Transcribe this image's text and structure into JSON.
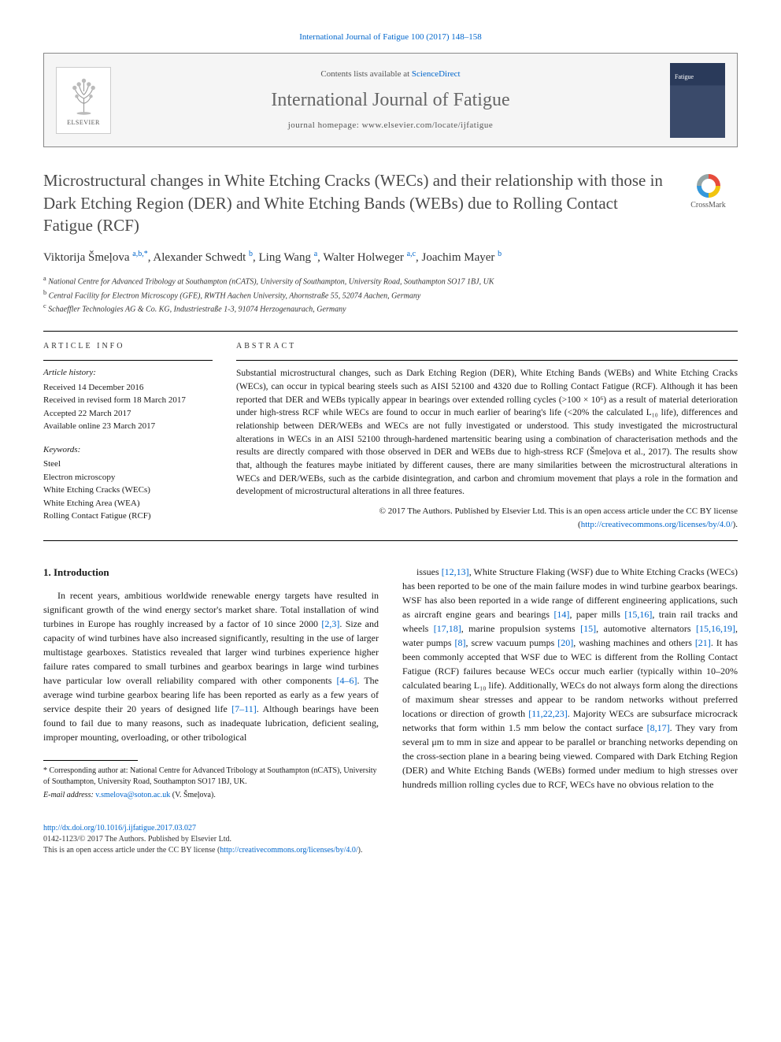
{
  "citation": "International Journal of Fatigue 100 (2017) 148–158",
  "header": {
    "publisher_logo_label": "ELSEVIER",
    "contents_prefix": "Contents lists available at ",
    "contents_source": "ScienceDirect",
    "journal_name": "International Journal of Fatigue",
    "homepage_prefix": "journal homepage: ",
    "homepage_url": "www.elsevier.com/locate/ijfatigue",
    "cover_label": "Fatigue"
  },
  "title": "Microstructural changes in White Etching Cracks (WECs) and their relationship with those in Dark Etching Region (DER) and White Etching Bands (WEBs) due to Rolling Contact Fatigue (RCF)",
  "crossmark_label": "CrossMark",
  "authors_html": "Viktorija Šmeļova <sup>a,b,*</sup>, Alexander Schwedt <sup>b</sup>, Ling Wang <sup>a</sup>, Walter Holweger <sup>a,c</sup>, Joachim Mayer <sup>b</sup>",
  "affiliations": [
    {
      "sup": "a",
      "text": "National Centre for Advanced Tribology at Southampton (nCATS), University of Southampton, University Road, Southampton SO17 1BJ, UK"
    },
    {
      "sup": "b",
      "text": "Central Facility for Electron Microscopy (GFE), RWTH Aachen University, Ahornstraße 55, 52074 Aachen, Germany"
    },
    {
      "sup": "c",
      "text": "Schaeffler Technologies AG & Co. KG, Industriestraße 1-3, 91074 Herzogenaurach, Germany"
    }
  ],
  "info": {
    "heading": "ARTICLE INFO",
    "history_label": "Article history:",
    "history": [
      "Received 14 December 2016",
      "Received in revised form 18 March 2017",
      "Accepted 22 March 2017",
      "Available online 23 March 2017"
    ],
    "keywords_label": "Keywords:",
    "keywords": [
      "Steel",
      "Electron microscopy",
      "White Etching Cracks (WECs)",
      "White Etching Area (WEA)",
      "Rolling Contact Fatigue (RCF)"
    ]
  },
  "abstract": {
    "heading": "ABSTRACT",
    "text": "Substantial microstructural changes, such as Dark Etching Region (DER), White Etching Bands (WEBs) and White Etching Cracks (WECs), can occur in typical bearing steels such as AISI 52100 and 4320 due to Rolling Contact Fatigue (RCF). Although it has been reported that DER and WEBs typically appear in bearings over extended rolling cycles (>100 × 10⁶) as a result of material deterioration under high-stress RCF while WECs are found to occur in much earlier of bearing's life (<20% the calculated L₁₀ life), differences and relationship between DER/WEBs and WECs are not fully investigated or understood. This study investigated the microstructural alterations in WECs in an AISI 52100 through-hardened martensitic bearing using a combination of characterisation methods and the results are directly compared with those observed in DER and WEBs due to high-stress RCF (Šmeļova et al., 2017). The results show that, although the features maybe initiated by different causes, there are many similarities between the microstructural alterations in WECs and DER/WEBs, such as the carbide disintegration, and carbon and chromium movement that plays a role in the formation and development of microstructural alterations in all three features.",
    "copyright_line": "© 2017 The Authors. Published by Elsevier Ltd. This is an open access article under the CC BY license (",
    "copyright_url": "http://creativecommons.org/licenses/by/4.0/",
    "copyright_close": ")."
  },
  "section1": {
    "heading": "1. Introduction",
    "para1": "In recent years, ambitious worldwide renewable energy targets have resulted in significant growth of the wind energy sector's market share. Total installation of wind turbines in Europe has roughly increased by a factor of 10 since 2000 [2,3]. Size and capacity of wind turbines have also increased significantly, resulting in the use of larger multistage gearboxes. Statistics revealed that larger wind turbines experience higher failure rates compared to small turbines and gearbox bearings in large wind turbines have particular low overall reliability compared with other components [4–6]. The average wind turbine gearbox bearing life has been reported as early as a few years of service despite their 20 years of designed life [7–11]. Although bearings have been found to fail due to many reasons, such as inadequate lubrication, deficient sealing, improper mounting, overloading, or other tribological",
    "para2": "issues [12,13], White Structure Flaking (WSF) due to White Etching Cracks (WECs) has been reported to be one of the main failure modes in wind turbine gearbox bearings. WSF has also been reported in a wide range of different engineering applications, such as aircraft engine gears and bearings [14], paper mills [15,16], train rail tracks and wheels [17,18], marine propulsion systems [15], automotive alternators [15,16,19], water pumps [8], screw vacuum pumps [20], washing machines and others [21]. It has been commonly accepted that WSF due to WEC is different from the Rolling Contact Fatigue (RCF) failures because WECs occur much earlier (typically within 10–20% calculated bearing L₁₀ life). Additionally, WECs do not always form along the directions of maximum shear stresses and appear to be random networks without preferred locations or direction of growth [11,22,23]. Majority WECs are subsurface microcrack networks that form within 1.5 mm below the contact surface [8,17]. They vary from several μm to mm in size and appear to be parallel or branching networks depending on the cross-section plane in a bearing being viewed. Compared with Dark Etching Region (DER) and White Etching Bands (WEBs) formed under medium to high stresses over hundreds million rolling cycles due to RCF, WECs have no obvious relation to the"
  },
  "footnote": {
    "corr_label": "* Corresponding author at: National Centre for Advanced Tribology at Southampton (nCATS), University of Southampton, University Road, Southampton SO17 1BJ, UK.",
    "email_label": "E-mail address:",
    "email": "v.smelova@soton.ac.uk",
    "email_person": "(V. Šmeļova)."
  },
  "doi": {
    "url": "http://dx.doi.org/10.1016/j.ijfatigue.2017.03.027",
    "issn_line": "0142-1123/© 2017 The Authors. Published by Elsevier Ltd.",
    "license_line": "This is an open access article under the CC BY license (",
    "license_url": "http://creativecommons.org/licenses/by/4.0/",
    "license_close": ")."
  },
  "colors": {
    "link": "#0066cc",
    "text": "#1a1a1a",
    "title_gray": "#4a4a4a",
    "header_bg": "#f5f5f5",
    "border": "#888888"
  }
}
